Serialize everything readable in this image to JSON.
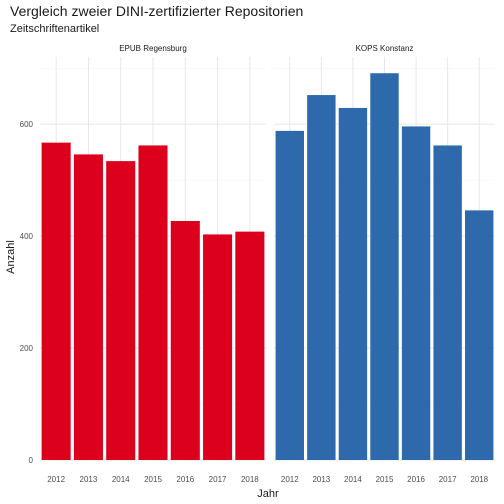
{
  "chart_data": {
    "type": "bar",
    "title": "Vergleich zweier DINI-zertifizierter Repositorien",
    "subtitle": "Zeitschriftenartikel",
    "xlabel": "Jahr",
    "ylabel": "Anzahl",
    "ylim": [
      0,
      720
    ],
    "yticks": [
      0,
      200,
      400,
      600
    ],
    "grid": true,
    "categories": [
      "2012",
      "2013",
      "2014",
      "2015",
      "2016",
      "2017",
      "2018"
    ],
    "panels": [
      {
        "name": "EPUB Regensburg",
        "color": "#dc001c",
        "values": [
          567,
          546,
          534,
          562,
          427,
          403,
          408
        ]
      },
      {
        "name": "KOPS Konstanz",
        "color": "#2e6aab",
        "values": [
          588,
          652,
          629,
          691,
          596,
          562,
          446
        ]
      }
    ]
  }
}
